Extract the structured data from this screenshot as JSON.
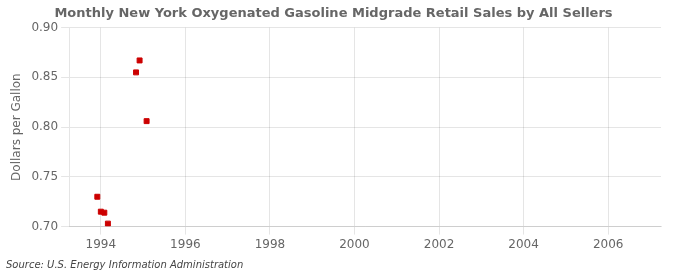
{
  "chart_data": {
    "type": "scatter",
    "title": "Monthly New York Oxygenated Gasoline Midgrade Retail Sales by All Sellers",
    "ylabel": "Dollars per Gallon",
    "annotation": "Source: U.S. Energy Information Administration",
    "x": [
      1993.917,
      1994.0,
      1994.083,
      1994.167,
      1994.833,
      1994.917,
      1995.083
    ],
    "values": [
      0.73,
      0.715,
      0.714,
      0.703,
      0.855,
      0.867,
      0.806
    ],
    "color": "#cc0000",
    "marker": "square",
    "xlim": [
      1993.25,
      2007.25
    ],
    "xticks": [
      1994,
      1996,
      1998,
      2000,
      2002,
      2004,
      2006
    ],
    "ylim": [
      0.7,
      0.9
    ],
    "yticks": [
      {
        "value": 0.7,
        "label": "0.70"
      },
      0.75,
      {
        "value": 0.8,
        "label": "0.80"
      },
      0.85,
      {
        "value": 0.9,
        "label": "0.90"
      }
    ],
    "grid": true
  }
}
